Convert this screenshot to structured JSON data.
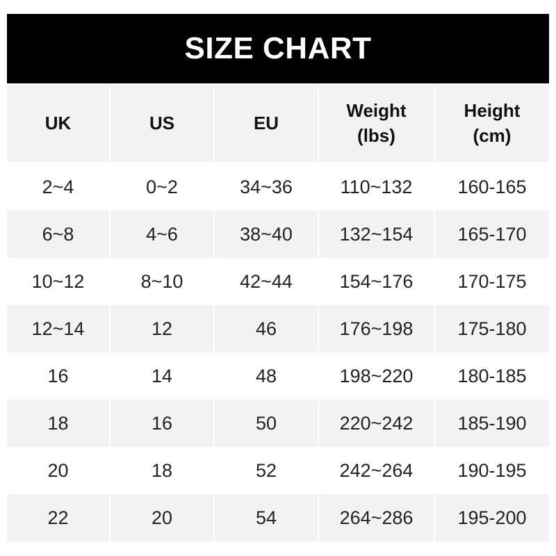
{
  "title": "SIZE CHART",
  "headers": [
    {
      "line1": "UK",
      "line2": ""
    },
    {
      "line1": "US",
      "line2": ""
    },
    {
      "line1": "EU",
      "line2": ""
    },
    {
      "line1": "Weight",
      "line2": "(lbs)"
    },
    {
      "line1": "Height",
      "line2": "(cm)"
    }
  ],
  "rows": [
    [
      "2~4",
      "0~2",
      "34~36",
      "110~132",
      "160-165"
    ],
    [
      "6~8",
      "4~6",
      "38~40",
      "132~154",
      "165-170"
    ],
    [
      "10~12",
      "8~10",
      "42~44",
      "154~176",
      "170-175"
    ],
    [
      "12~14",
      "12",
      "46",
      "176~198",
      "175-180"
    ],
    [
      "16",
      "14",
      "48",
      "198~220",
      "180-185"
    ],
    [
      "18",
      "16",
      "50",
      "220~242",
      "185-190"
    ],
    [
      "20",
      "18",
      "52",
      "242~264",
      "190-195"
    ],
    [
      "22",
      "20",
      "54",
      "264~286",
      "195-200"
    ]
  ],
  "colors": {
    "banner": "#000000",
    "stripe": "#f2f2f2"
  }
}
